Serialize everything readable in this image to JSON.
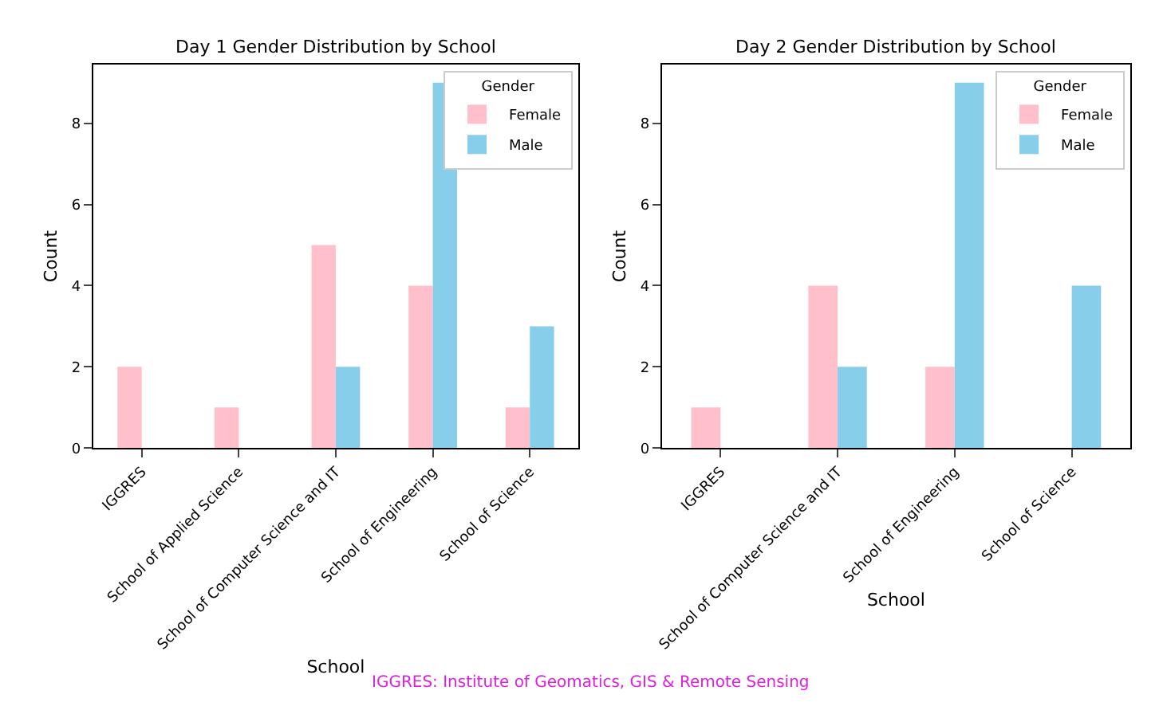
{
  "chart_data": [
    {
      "type": "bar",
      "title": "Day 1 Gender Distribution by School",
      "xlabel": "School",
      "ylabel": "Count",
      "legend_title": "Gender",
      "legend": "top right",
      "categories": [
        "IGGRES",
        "School of Applied Science",
        "School of Computer Science and IT",
        "School of Engineering",
        "School of Science"
      ],
      "series": [
        {
          "name": "Female",
          "color": "#ffc0cb",
          "values": [
            2,
            1,
            5,
            4,
            1
          ]
        },
        {
          "name": "Male",
          "color": "#87ceeb",
          "values": [
            null,
            null,
            2,
            9,
            3
          ]
        }
      ],
      "ylim": [
        0,
        9.45
      ],
      "yticks": [
        0,
        2,
        4,
        6,
        8
      ],
      "grid": false,
      "annotations": [
        "IGGRES: Institute of Geomatics, GIS & Remote Sensing"
      ]
    },
    {
      "type": "bar",
      "title": "Day 2 Gender Distribution by School",
      "xlabel": "School",
      "ylabel": "Count",
      "legend_title": "Gender",
      "legend": "top right",
      "categories": [
        "IGGRES",
        "School of Computer Science and IT",
        "School of Engineering",
        "School of Science"
      ],
      "series": [
        {
          "name": "Female",
          "color": "#ffc0cb",
          "values": [
            1,
            4,
            2,
            null
          ]
        },
        {
          "name": "Male",
          "color": "#87ceeb",
          "values": [
            null,
            2,
            9,
            4
          ]
        }
      ],
      "ylim": [
        0,
        9.45
      ],
      "yticks": [
        0,
        2,
        4,
        6,
        8
      ],
      "grid": false
    }
  ]
}
